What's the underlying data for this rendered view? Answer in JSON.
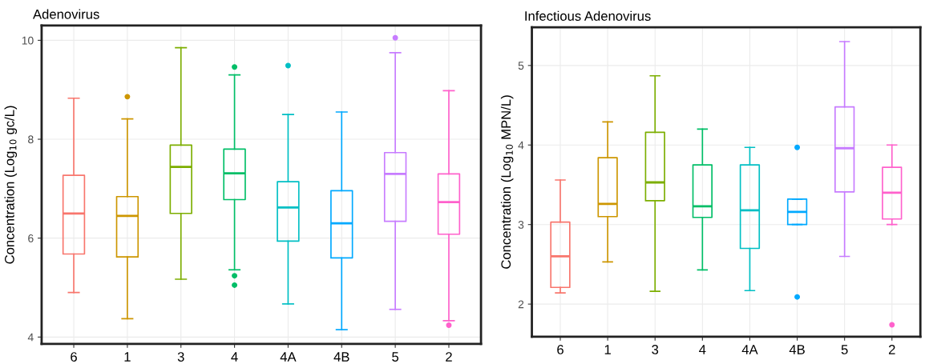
{
  "chart_data": [
    {
      "type": "box",
      "title": "Adenovirus",
      "ylabel": "Concentration (Log$_{10}$ gc/L)",
      "categories": [
        "6",
        "1",
        "3",
        "4",
        "4A",
        "4B",
        "5",
        "2"
      ],
      "colors": [
        "#f8766d",
        "#cd9600",
        "#7cae00",
        "#00be67",
        "#00bfc4",
        "#00a9ff",
        "#c77cff",
        "#ff61cc"
      ],
      "boxes": [
        {
          "low": 4.9,
          "q1": 5.68,
          "median": 6.5,
          "q3": 7.27,
          "high": 8.83
        },
        {
          "low": 4.37,
          "q1": 5.62,
          "median": 6.45,
          "q3": 6.84,
          "high": 8.41,
          "outliers": [
            8.86
          ]
        },
        {
          "low": 5.17,
          "q1": 6.5,
          "median": 7.44,
          "q3": 7.88,
          "high": 9.85
        },
        {
          "low": 5.36,
          "q1": 6.78,
          "median": 7.31,
          "q3": 7.8,
          "high": 9.3,
          "outliers": [
            9.46,
            5.24,
            5.05
          ]
        },
        {
          "low": 4.67,
          "q1": 5.94,
          "median": 6.62,
          "q3": 7.14,
          "high": 8.5,
          "outliers": [
            9.49
          ]
        },
        {
          "low": 4.15,
          "q1": 5.6,
          "median": 6.3,
          "q3": 6.96,
          "high": 8.55
        },
        {
          "low": 4.56,
          "q1": 6.34,
          "median": 7.3,
          "q3": 7.73,
          "high": 9.75,
          "outliers": [
            10.05
          ]
        },
        {
          "low": 4.33,
          "q1": 6.08,
          "median": 6.73,
          "q3": 7.3,
          "high": 8.98,
          "outliers": [
            4.24
          ]
        }
      ],
      "ylim": [
        3.86,
        10.3
      ],
      "yticks": [
        4,
        6,
        8,
        10
      ],
      "grid": true
    },
    {
      "type": "box",
      "title": "Infectious Adenovirus",
      "ylabel": "Concentration (Log$_{10}$ MPN/L)",
      "categories": [
        "6",
        "1",
        "3",
        "4",
        "4A",
        "4B",
        "5",
        "2"
      ],
      "colors": [
        "#f8766d",
        "#cd9600",
        "#7cae00",
        "#00be67",
        "#00bfc4",
        "#00a9ff",
        "#c77cff",
        "#ff61cc"
      ],
      "boxes": [
        {
          "low": 2.14,
          "q1": 2.21,
          "median": 2.6,
          "q3": 3.03,
          "high": 3.56
        },
        {
          "low": 2.53,
          "q1": 3.1,
          "median": 3.26,
          "q3": 3.84,
          "high": 4.29
        },
        {
          "low": 2.16,
          "q1": 3.3,
          "median": 3.53,
          "q3": 4.16,
          "high": 4.87
        },
        {
          "low": 2.43,
          "q1": 3.09,
          "median": 3.23,
          "q3": 3.75,
          "high": 4.2
        },
        {
          "low": 2.17,
          "q1": 2.7,
          "median": 3.18,
          "q3": 3.75,
          "high": 3.97
        },
        {
          "low": 3.0,
          "q1": 3.0,
          "median": 3.16,
          "q3": 3.32,
          "high": 3.32,
          "outliers": [
            3.97,
            2.09
          ]
        },
        {
          "low": 2.6,
          "q1": 3.41,
          "median": 3.96,
          "q3": 4.48,
          "high": 5.3
        },
        {
          "low": 3.0,
          "q1": 3.07,
          "median": 3.4,
          "q3": 3.72,
          "high": 4.0,
          "outliers": [
            1.74
          ]
        }
      ],
      "ylim": [
        1.59,
        5.48
      ],
      "yticks": [
        2,
        3,
        4,
        5
      ],
      "grid": true
    }
  ]
}
